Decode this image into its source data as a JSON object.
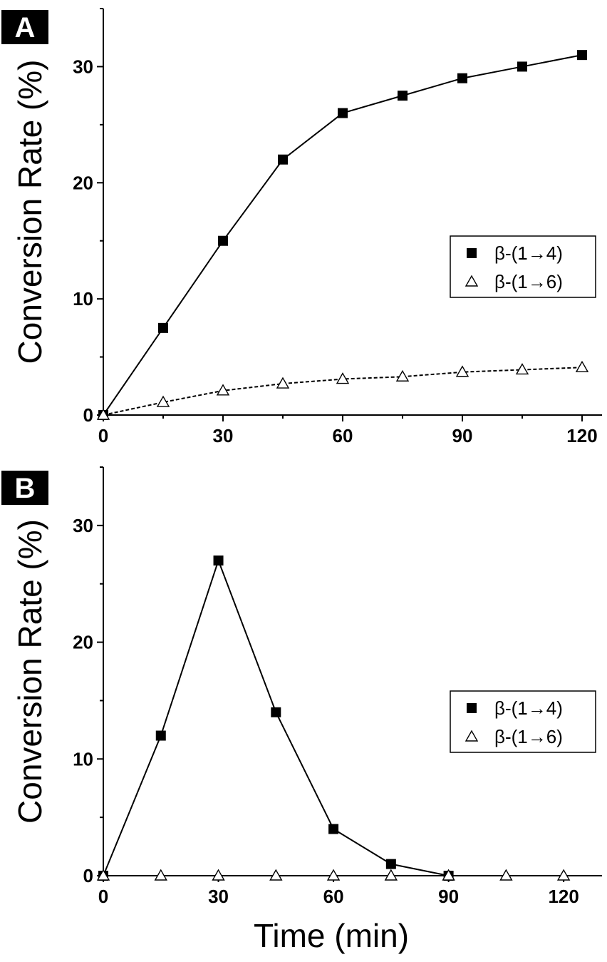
{
  "chart_data": [
    {
      "panel": "A",
      "type": "line",
      "xlabel": "",
      "ylabel": "Conversion Rate (%)",
      "xlim": [
        0,
        125
      ],
      "ylim": [
        0,
        35
      ],
      "xticks": [
        0,
        30,
        60,
        90,
        120
      ],
      "yticks": [
        0,
        10,
        20,
        30
      ],
      "legend_position": "right",
      "series": [
        {
          "name": "β-(1→4)",
          "marker": "filled-square",
          "line": "solid",
          "x": [
            0,
            15,
            30,
            45,
            60,
            75,
            90,
            105,
            120
          ],
          "y": [
            0,
            7.5,
            15,
            22,
            26,
            27.5,
            29,
            30,
            31
          ]
        },
        {
          "name": "β-(1→6)",
          "marker": "open-triangle",
          "line": "dashed",
          "x": [
            0,
            15,
            30,
            45,
            60,
            75,
            90,
            105,
            120
          ],
          "y": [
            0,
            1.1,
            2.1,
            2.7,
            3.1,
            3.3,
            3.7,
            3.9,
            4.1
          ]
        }
      ]
    },
    {
      "panel": "B",
      "type": "line",
      "xlabel": "Time (min)",
      "ylabel": "Conversion Rate (%)",
      "xlim": [
        0,
        130
      ],
      "ylim": [
        0,
        35
      ],
      "xticks": [
        0,
        30,
        60,
        90,
        120
      ],
      "yticks": [
        0,
        10,
        20,
        30
      ],
      "legend_position": "right",
      "series": [
        {
          "name": "β-(1→4)",
          "marker": "filled-square",
          "line": "solid",
          "x": [
            0,
            15,
            30,
            45,
            60,
            75,
            90
          ],
          "y": [
            0,
            12,
            27,
            14,
            4,
            1,
            0
          ]
        },
        {
          "name": "β-(1→6)",
          "marker": "open-triangle",
          "line": "none",
          "x": [
            0,
            15,
            30,
            45,
            60,
            75,
            90,
            105,
            120
          ],
          "y": [
            0,
            0,
            0,
            0,
            0,
            0,
            0,
            0,
            0
          ]
        }
      ]
    }
  ]
}
